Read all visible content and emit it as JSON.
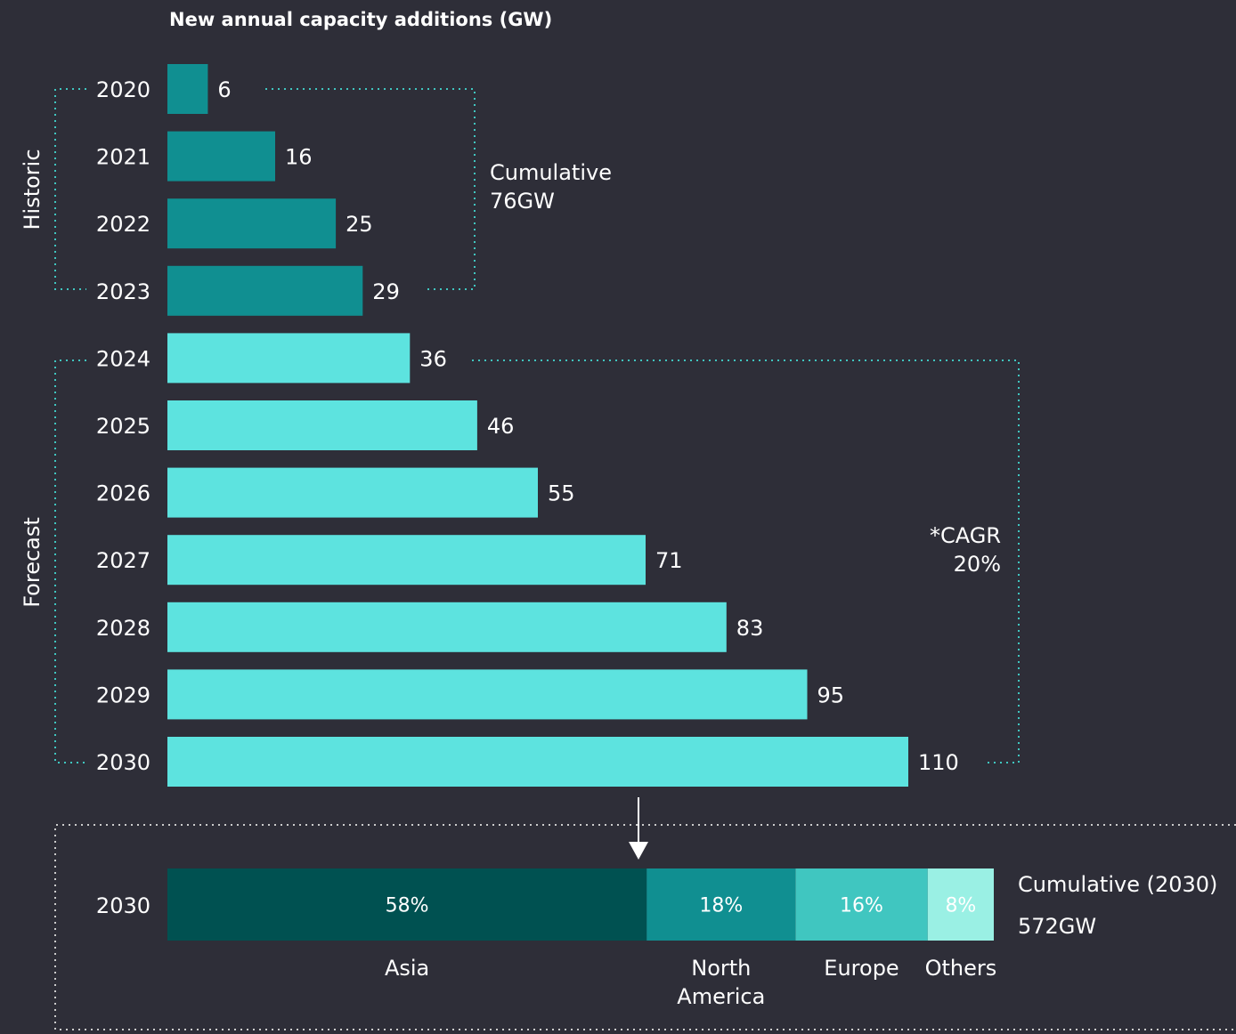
{
  "chart_data": {
    "type": "bar",
    "orientation": "horizontal",
    "title": "New annual capacity additions (GW)",
    "categories": [
      "2020",
      "2021",
      "2022",
      "2023",
      "2024",
      "2025",
      "2026",
      "2027",
      "2028",
      "2029",
      "2030"
    ],
    "values": [
      6,
      16,
      25,
      29,
      36,
      46,
      55,
      71,
      83,
      95,
      110
    ],
    "groups": [
      {
        "label": "Historic",
        "categories": [
          "2020",
          "2021",
          "2022",
          "2023"
        ],
        "color": "#108f91",
        "annotation": [
          "Cumulative",
          "76GW"
        ]
      },
      {
        "label": "Forecast",
        "categories": [
          "2024",
          "2025",
          "2026",
          "2027",
          "2028",
          "2029",
          "2030"
        ],
        "color": "#5de3df",
        "annotation": [
          "*CAGR",
          "20%"
        ]
      }
    ],
    "xlim": [
      0,
      110
    ],
    "grid": false,
    "breakdown": {
      "type": "stacked-bar",
      "category": "2030",
      "segments": [
        {
          "name": "Asia",
          "label": "58%",
          "value": 58,
          "color": "#005151"
        },
        {
          "name": "North America",
          "label": "18%",
          "value": 18,
          "color": "#108f91"
        },
        {
          "name": "Europe",
          "label": "16%",
          "value": 16,
          "color": "#40c6c0"
        },
        {
          "name": "Others",
          "label": "8%",
          "value": 8,
          "color": "#9af0e4"
        }
      ],
      "annotation": [
        "Cumulative (2030)",
        "572GW"
      ]
    }
  },
  "colors": {
    "background": "#2e2e38",
    "historic": "#108f91",
    "forecast": "#5de3df",
    "text": "#ffffff",
    "dotted_bracket": "#40c6c0",
    "dotted_box": "#cccccc"
  },
  "icons": {
    "connector": "down-arrow-icon"
  }
}
